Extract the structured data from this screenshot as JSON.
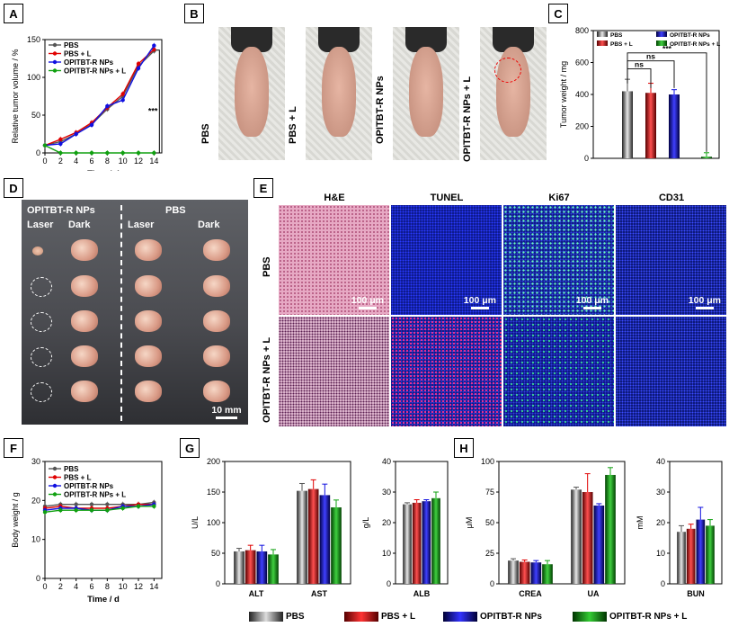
{
  "panel_labels": {
    "A": "A",
    "B": "B",
    "C": "C",
    "D": "D",
    "E": "E",
    "F": "F",
    "G": "G",
    "H": "H"
  },
  "colors": {
    "PBS": "#555555",
    "PBS_L": "#e00000",
    "NPs": "#1010e0",
    "NPs_L": "#10a010"
  },
  "panel_b": {
    "labels": [
      "PBS",
      "PBS + L",
      "OPITBT-R NPs",
      "OPITBT-R NPs + L"
    ]
  },
  "panel_d": {
    "group1": "OPITBT-R NPs",
    "group2": "PBS",
    "cols": [
      "Laser",
      "Dark",
      "Laser",
      "Dark"
    ],
    "scale": "10 mm"
  },
  "panel_e": {
    "cols": [
      "H&E",
      "TUNEL",
      "Ki67",
      "CD31"
    ],
    "rows": [
      "PBS",
      "OPITBT-R NPs + L"
    ],
    "scale": "100 μm"
  },
  "chart_data": [
    {
      "id": "A",
      "type": "line",
      "xlabel": "Time / d",
      "ylabel": "Relative tumor volume / %",
      "x": [
        0,
        2,
        4,
        6,
        8,
        10,
        12,
        14
      ],
      "xlim": [
        0,
        15
      ],
      "ylim": [
        0,
        150
      ],
      "xticks": [
        0,
        2,
        4,
        6,
        8,
        10,
        12,
        14
      ],
      "yticks": [
        0,
        50,
        100,
        150
      ],
      "series": [
        {
          "name": "PBS",
          "values": [
            10,
            15,
            25,
            38,
            58,
            75,
            115,
            135
          ]
        },
        {
          "name": "PBS + L",
          "values": [
            10,
            18,
            27,
            40,
            60,
            78,
            118,
            137
          ]
        },
        {
          "name": "OPITBT-R NPs",
          "values": [
            10,
            12,
            25,
            37,
            62,
            70,
            112,
            142
          ]
        },
        {
          "name": "OPITBT-R NPs + L",
          "values": [
            10,
            0,
            0,
            0,
            0,
            0,
            0,
            0
          ]
        }
      ],
      "annotation": "***"
    },
    {
      "id": "C",
      "type": "bar",
      "ylabel": "Tumor weight / mg",
      "ylim": [
        0,
        800
      ],
      "yticks": [
        0,
        200,
        400,
        600,
        800
      ],
      "series": [
        {
          "name": "PBS",
          "values": [
            420
          ],
          "err": [
            75
          ]
        },
        {
          "name": "PBS + L",
          "values": [
            410
          ],
          "err": [
            60
          ]
        },
        {
          "name": "OPITBT-R NPs",
          "values": [
            400
          ],
          "err": [
            30
          ]
        },
        {
          "name": "OPITBT-R NPs + L",
          "values": [
            10
          ],
          "err": [
            25
          ]
        }
      ],
      "annotations": [
        "ns",
        "ns",
        "***"
      ]
    },
    {
      "id": "F",
      "type": "line",
      "xlabel": "Time / d",
      "ylabel": "Body weight / g",
      "x": [
        0,
        2,
        4,
        6,
        8,
        10,
        12,
        14
      ],
      "xlim": [
        0,
        15
      ],
      "ylim": [
        0,
        30
      ],
      "xticks": [
        0,
        2,
        4,
        6,
        8,
        10,
        12,
        14
      ],
      "yticks": [
        0,
        10,
        20,
        30
      ],
      "series": [
        {
          "name": "PBS",
          "values": [
            18.5,
            19,
            19,
            19,
            19,
            19,
            19,
            19.5
          ]
        },
        {
          "name": "PBS + L",
          "values": [
            18,
            18.5,
            18,
            18,
            18,
            18.5,
            19,
            19
          ]
        },
        {
          "name": "OPITBT-R NPs",
          "values": [
            17.5,
            18,
            18,
            17.5,
            17.5,
            18.5,
            18.5,
            19
          ]
        },
        {
          "name": "OPITBT-R NPs + L",
          "values": [
            17,
            17.5,
            17.5,
            17.5,
            17.5,
            18,
            18.5,
            18.5
          ]
        }
      ]
    },
    {
      "id": "G1",
      "type": "bar",
      "ylabel": "U/L",
      "ylim": [
        0,
        200
      ],
      "yticks": [
        0,
        50,
        100,
        150,
        200
      ],
      "categories": [
        "ALT",
        "AST"
      ],
      "series": [
        {
          "name": "PBS",
          "values": [
            53,
            152
          ],
          "err": [
            5,
            12
          ]
        },
        {
          "name": "PBS + L",
          "values": [
            55,
            155
          ],
          "err": [
            8,
            15
          ]
        },
        {
          "name": "OPITBT-R NPs",
          "values": [
            53,
            145
          ],
          "err": [
            10,
            18
          ]
        },
        {
          "name": "OPITBT-R NPs + L",
          "values": [
            48,
            125
          ],
          "err": [
            8,
            12
          ]
        }
      ]
    },
    {
      "id": "G2",
      "type": "bar",
      "ylabel": "g/L",
      "ylim": [
        0,
        40
      ],
      "yticks": [
        0,
        10,
        20,
        30,
        40
      ],
      "categories": [
        "ALB"
      ],
      "series": [
        {
          "name": "PBS",
          "values": [
            26
          ],
          "err": [
            0.5
          ]
        },
        {
          "name": "PBS + L",
          "values": [
            26.5
          ],
          "err": [
            1
          ]
        },
        {
          "name": "OPITBT-R NPs",
          "values": [
            27
          ],
          "err": [
            0.5
          ]
        },
        {
          "name": "OPITBT-R NPs + L",
          "values": [
            28
          ],
          "err": [
            2
          ]
        }
      ]
    },
    {
      "id": "H1",
      "type": "bar",
      "ylabel": "μM",
      "ylim": [
        0,
        100
      ],
      "yticks": [
        0,
        25,
        50,
        75,
        100
      ],
      "categories": [
        "CREA",
        "UA"
      ],
      "series": [
        {
          "name": "PBS",
          "values": [
            19,
            77
          ],
          "err": [
            1.5,
            2
          ]
        },
        {
          "name": "PBS + L",
          "values": [
            18,
            75
          ],
          "err": [
            1.5,
            15
          ]
        },
        {
          "name": "OPITBT-R NPs",
          "values": [
            17.5,
            64
          ],
          "err": [
            1.5,
            1.5
          ]
        },
        {
          "name": "OPITBT-R NPs + L",
          "values": [
            16,
            89
          ],
          "err": [
            3,
            6
          ]
        }
      ]
    },
    {
      "id": "H2",
      "type": "bar",
      "ylabel": "mM",
      "ylim": [
        0,
        40
      ],
      "yticks": [
        0,
        10,
        20,
        30,
        40
      ],
      "categories": [
        "BUN"
      ],
      "series": [
        {
          "name": "PBS",
          "values": [
            17
          ],
          "err": [
            2
          ]
        },
        {
          "name": "PBS + L",
          "values": [
            18
          ],
          "err": [
            1.5
          ]
        },
        {
          "name": "OPITBT-R NPs",
          "values": [
            21
          ],
          "err": [
            4
          ]
        },
        {
          "name": "OPITBT-R NPs + L",
          "values": [
            19
          ],
          "err": [
            2
          ]
        }
      ]
    }
  ],
  "bottom_legend": [
    "PBS",
    "PBS + L",
    "OPITBT-R NPs",
    "OPITBT-R NPs + L"
  ]
}
